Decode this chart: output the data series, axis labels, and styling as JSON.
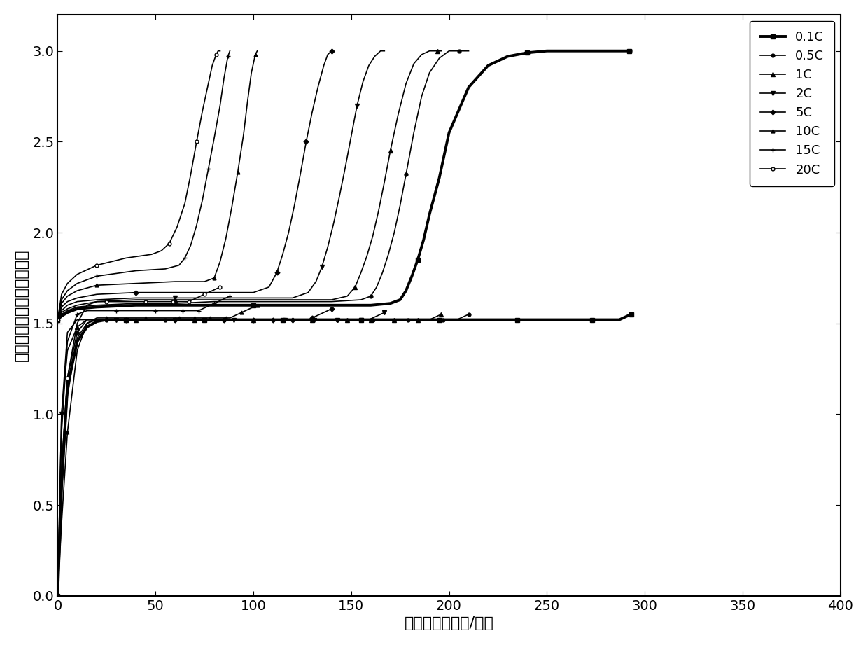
{
  "xlabel": "比容量（毫安时/克）",
  "ylabel": "电压（伏，相对于金属锂）",
  "xlim": [
    0,
    400
  ],
  "ylim": [
    0.0,
    3.2
  ],
  "xticks": [
    0,
    50,
    100,
    150,
    200,
    250,
    300,
    350,
    400
  ],
  "yticks": [
    0.0,
    0.5,
    1.0,
    1.5,
    2.0,
    2.5,
    3.0
  ],
  "legend_labels": [
    "0.1C",
    "0.5C",
    "1C",
    "2C",
    "5C",
    "10C",
    "15C",
    "20C"
  ],
  "curves": {
    "0.1C": {
      "charge_cap": [
        0,
        2,
        5,
        10,
        20,
        40,
        60,
        80,
        100,
        120,
        140,
        160,
        170,
        175,
        178,
        181,
        184,
        187,
        190,
        195,
        200,
        210,
        220,
        230,
        240,
        250,
        260,
        270,
        280,
        285,
        288,
        290,
        292,
        293
      ],
      "charge_v": [
        1.52,
        1.54,
        1.56,
        1.58,
        1.59,
        1.6,
        1.6,
        1.6,
        1.6,
        1.6,
        1.6,
        1.6,
        1.61,
        1.63,
        1.68,
        1.76,
        1.85,
        1.96,
        2.1,
        2.3,
        2.55,
        2.8,
        2.92,
        2.97,
        2.99,
        3.0,
        3.0,
        3.0,
        3.0,
        3.0,
        3.0,
        3.0,
        3.0,
        3.0
      ],
      "discharge_cap": [
        293,
        291,
        289,
        287,
        285,
        282,
        279,
        276,
        273,
        270,
        265,
        260,
        255,
        250,
        245,
        240,
        235,
        230,
        225,
        220,
        215,
        210,
        205,
        200,
        195,
        190,
        185,
        180,
        175,
        170,
        165,
        160,
        155,
        150,
        145,
        140,
        135,
        130,
        125,
        120,
        115,
        110,
        105,
        100,
        95,
        90,
        85,
        80,
        75,
        70,
        65,
        60,
        55,
        50,
        45,
        40,
        35,
        30,
        25,
        20,
        15,
        10,
        5,
        2,
        0
      ],
      "discharge_v": [
        1.55,
        1.54,
        1.53,
        1.52,
        1.52,
        1.52,
        1.52,
        1.52,
        1.52,
        1.52,
        1.52,
        1.52,
        1.52,
        1.52,
        1.52,
        1.52,
        1.52,
        1.52,
        1.52,
        1.52,
        1.52,
        1.52,
        1.52,
        1.52,
        1.52,
        1.52,
        1.52,
        1.52,
        1.52,
        1.52,
        1.52,
        1.52,
        1.52,
        1.52,
        1.52,
        1.52,
        1.52,
        1.52,
        1.52,
        1.52,
        1.52,
        1.52,
        1.52,
        1.52,
        1.52,
        1.52,
        1.52,
        1.52,
        1.52,
        1.52,
        1.52,
        1.52,
        1.52,
        1.52,
        1.52,
        1.52,
        1.52,
        1.52,
        1.52,
        1.51,
        1.48,
        1.4,
        1.15,
        0.6,
        0.0
      ]
    },
    "0.5C": {
      "charge_cap": [
        0,
        2,
        5,
        10,
        20,
        40,
        60,
        80,
        100,
        120,
        140,
        155,
        160,
        163,
        166,
        169,
        172,
        175,
        178,
        182,
        186,
        190,
        195,
        200,
        205,
        208,
        210
      ],
      "charge_v": [
        1.52,
        1.55,
        1.57,
        1.59,
        1.6,
        1.61,
        1.61,
        1.62,
        1.62,
        1.62,
        1.62,
        1.63,
        1.65,
        1.7,
        1.78,
        1.88,
        2.0,
        2.15,
        2.32,
        2.55,
        2.75,
        2.88,
        2.96,
        3.0,
        3.0,
        3.0,
        3.0
      ],
      "discharge_cap": [
        210,
        208,
        206,
        204,
        202,
        200,
        197,
        194,
        191,
        188,
        185,
        182,
        179,
        176,
        173,
        170,
        167,
        164,
        161,
        158,
        155,
        152,
        149,
        146,
        143,
        140,
        135,
        130,
        125,
        120,
        115,
        110,
        105,
        100,
        95,
        90,
        85,
        80,
        75,
        70,
        65,
        60,
        55,
        50,
        45,
        40,
        35,
        30,
        25,
        20,
        15,
        10,
        5,
        2,
        0
      ],
      "discharge_v": [
        1.55,
        1.54,
        1.53,
        1.52,
        1.52,
        1.52,
        1.52,
        1.52,
        1.52,
        1.52,
        1.52,
        1.52,
        1.52,
        1.52,
        1.52,
        1.52,
        1.52,
        1.52,
        1.52,
        1.52,
        1.52,
        1.52,
        1.52,
        1.52,
        1.52,
        1.52,
        1.52,
        1.52,
        1.52,
        1.52,
        1.52,
        1.52,
        1.52,
        1.52,
        1.52,
        1.52,
        1.52,
        1.52,
        1.52,
        1.52,
        1.52,
        1.52,
        1.52,
        1.52,
        1.52,
        1.52,
        1.52,
        1.52,
        1.52,
        1.52,
        1.5,
        1.42,
        1.1,
        0.55,
        0.0
      ]
    },
    "1C": {
      "charge_cap": [
        0,
        2,
        5,
        10,
        20,
        40,
        60,
        80,
        100,
        120,
        140,
        148,
        152,
        155,
        158,
        161,
        164,
        167,
        170,
        174,
        178,
        182,
        186,
        190,
        194,
        196
      ],
      "charge_v": [
        1.52,
        1.56,
        1.58,
        1.6,
        1.62,
        1.63,
        1.63,
        1.63,
        1.63,
        1.63,
        1.63,
        1.65,
        1.7,
        1.78,
        1.87,
        1.98,
        2.12,
        2.28,
        2.45,
        2.65,
        2.82,
        2.93,
        2.98,
        3.0,
        3.0,
        3.0
      ],
      "discharge_cap": [
        196,
        194,
        192,
        190,
        188,
        186,
        184,
        182,
        180,
        178,
        176,
        174,
        172,
        170,
        168,
        166,
        164,
        162,
        160,
        158,
        156,
        154,
        152,
        150,
        148,
        145,
        142,
        139,
        136,
        133,
        130,
        125,
        120,
        115,
        110,
        105,
        100,
        95,
        90,
        85,
        80,
        75,
        70,
        65,
        60,
        55,
        50,
        45,
        40,
        35,
        30,
        25,
        20,
        15,
        10,
        5,
        2,
        0
      ],
      "discharge_v": [
        1.55,
        1.54,
        1.53,
        1.52,
        1.52,
        1.52,
        1.52,
        1.52,
        1.52,
        1.52,
        1.52,
        1.52,
        1.52,
        1.52,
        1.52,
        1.52,
        1.52,
        1.52,
        1.52,
        1.52,
        1.52,
        1.52,
        1.52,
        1.52,
        1.52,
        1.52,
        1.52,
        1.52,
        1.52,
        1.52,
        1.52,
        1.52,
        1.52,
        1.52,
        1.52,
        1.52,
        1.52,
        1.52,
        1.52,
        1.52,
        1.52,
        1.52,
        1.52,
        1.52,
        1.52,
        1.52,
        1.52,
        1.52,
        1.52,
        1.52,
        1.52,
        1.52,
        1.52,
        1.52,
        1.48,
        1.35,
        1.0,
        0.0
      ]
    },
    "2C": {
      "charge_cap": [
        0,
        2,
        5,
        10,
        20,
        40,
        60,
        80,
        100,
        120,
        128,
        132,
        135,
        138,
        141,
        144,
        147,
        150,
        153,
        156,
        159,
        162,
        165,
        167
      ],
      "charge_v": [
        1.52,
        1.57,
        1.6,
        1.62,
        1.63,
        1.64,
        1.64,
        1.64,
        1.64,
        1.64,
        1.67,
        1.73,
        1.81,
        1.92,
        2.05,
        2.2,
        2.36,
        2.53,
        2.7,
        2.83,
        2.92,
        2.97,
        3.0,
        3.0
      ],
      "discharge_cap": [
        167,
        165,
        163,
        161,
        159,
        157,
        155,
        153,
        151,
        149,
        147,
        145,
        143,
        141,
        139,
        137,
        135,
        133,
        131,
        129,
        127,
        125,
        122,
        119,
        116,
        113,
        110,
        105,
        100,
        95,
        90,
        85,
        80,
        75,
        70,
        65,
        60,
        55,
        50,
        45,
        40,
        35,
        30,
        25,
        20,
        15,
        10,
        5,
        2,
        0
      ],
      "discharge_v": [
        1.56,
        1.55,
        1.54,
        1.53,
        1.52,
        1.52,
        1.52,
        1.52,
        1.52,
        1.52,
        1.52,
        1.52,
        1.52,
        1.52,
        1.52,
        1.52,
        1.52,
        1.52,
        1.52,
        1.52,
        1.52,
        1.52,
        1.52,
        1.52,
        1.52,
        1.52,
        1.52,
        1.52,
        1.52,
        1.52,
        1.52,
        1.52,
        1.52,
        1.52,
        1.52,
        1.52,
        1.52,
        1.52,
        1.52,
        1.52,
        1.52,
        1.52,
        1.52,
        1.52,
        1.52,
        1.52,
        1.52,
        1.45,
        1.0,
        0.0
      ]
    },
    "5C": {
      "charge_cap": [
        0,
        2,
        5,
        10,
        20,
        40,
        60,
        80,
        100,
        108,
        112,
        115,
        118,
        121,
        124,
        127,
        130,
        133,
        136,
        138,
        140
      ],
      "charge_v": [
        1.52,
        1.59,
        1.62,
        1.64,
        1.66,
        1.67,
        1.67,
        1.67,
        1.67,
        1.7,
        1.78,
        1.88,
        2.0,
        2.15,
        2.32,
        2.5,
        2.66,
        2.8,
        2.92,
        2.98,
        3.0
      ],
      "discharge_cap": [
        140,
        138,
        136,
        134,
        132,
        130,
        128,
        126,
        124,
        122,
        120,
        118,
        116,
        114,
        112,
        110,
        108,
        106,
        104,
        102,
        100,
        97,
        94,
        91,
        88,
        85,
        80,
        75,
        70,
        65,
        60,
        55,
        50,
        45,
        40,
        35,
        30,
        25,
        20,
        15,
        10,
        5,
        2,
        0
      ],
      "discharge_v": [
        1.58,
        1.57,
        1.56,
        1.55,
        1.54,
        1.53,
        1.52,
        1.52,
        1.52,
        1.52,
        1.52,
        1.52,
        1.52,
        1.52,
        1.52,
        1.52,
        1.52,
        1.52,
        1.52,
        1.52,
        1.52,
        1.52,
        1.52,
        1.52,
        1.52,
        1.52,
        1.52,
        1.52,
        1.52,
        1.52,
        1.52,
        1.52,
        1.52,
        1.52,
        1.52,
        1.52,
        1.52,
        1.52,
        1.52,
        1.52,
        1.45,
        1.2,
        0.7,
        0.0
      ]
    },
    "10C": {
      "charge_cap": [
        0,
        2,
        5,
        10,
        20,
        40,
        60,
        75,
        80,
        83,
        86,
        89,
        92,
        95,
        97,
        99,
        101,
        102
      ],
      "charge_v": [
        1.52,
        1.61,
        1.65,
        1.68,
        1.71,
        1.72,
        1.73,
        1.73,
        1.75,
        1.84,
        1.97,
        2.14,
        2.33,
        2.54,
        2.72,
        2.88,
        2.98,
        3.0
      ],
      "discharge_cap": [
        102,
        100,
        98,
        96,
        94,
        92,
        90,
        88,
        86,
        84,
        82,
        80,
        78,
        76,
        74,
        72,
        70,
        68,
        66,
        64,
        62,
        60,
        55,
        50,
        45,
        40,
        35,
        30,
        25,
        20,
        15,
        10,
        5,
        2,
        0
      ],
      "discharge_v": [
        1.6,
        1.59,
        1.58,
        1.57,
        1.56,
        1.55,
        1.54,
        1.53,
        1.53,
        1.53,
        1.53,
        1.53,
        1.53,
        1.53,
        1.53,
        1.53,
        1.53,
        1.53,
        1.53,
        1.53,
        1.53,
        1.53,
        1.53,
        1.53,
        1.53,
        1.53,
        1.53,
        1.53,
        1.53,
        1.53,
        1.5,
        1.35,
        0.9,
        0.4,
        0.0
      ]
    },
    "15C": {
      "charge_cap": [
        0,
        2,
        5,
        10,
        20,
        40,
        55,
        62,
        65,
        68,
        71,
        74,
        77,
        80,
        83,
        85,
        87,
        88
      ],
      "charge_v": [
        1.52,
        1.63,
        1.68,
        1.72,
        1.76,
        1.79,
        1.8,
        1.82,
        1.86,
        1.93,
        2.04,
        2.18,
        2.35,
        2.52,
        2.7,
        2.85,
        2.97,
        3.0
      ],
      "discharge_cap": [
        88,
        86,
        84,
        82,
        80,
        78,
        76,
        74,
        72,
        70,
        68,
        66,
        64,
        62,
        60,
        55,
        50,
        45,
        40,
        35,
        30,
        25,
        20,
        15,
        10,
        5,
        2,
        0
      ],
      "discharge_v": [
        1.65,
        1.64,
        1.63,
        1.62,
        1.61,
        1.6,
        1.59,
        1.58,
        1.57,
        1.57,
        1.57,
        1.57,
        1.57,
        1.57,
        1.57,
        1.57,
        1.57,
        1.57,
        1.57,
        1.57,
        1.57,
        1.57,
        1.57,
        1.57,
        1.55,
        1.4,
        0.9,
        0.0
      ]
    },
    "20C": {
      "charge_cap": [
        0,
        2,
        5,
        10,
        20,
        35,
        48,
        53,
        57,
        61,
        65,
        68,
        71,
        74,
        77,
        79,
        81,
        82,
        83
      ],
      "charge_v": [
        1.52,
        1.66,
        1.72,
        1.77,
        1.82,
        1.86,
        1.88,
        1.9,
        1.94,
        2.03,
        2.16,
        2.32,
        2.5,
        2.67,
        2.82,
        2.92,
        2.98,
        3.0,
        3.0
      ],
      "discharge_cap": [
        83,
        81,
        79,
        77,
        75,
        73,
        71,
        69,
        67,
        65,
        63,
        61,
        59,
        57,
        55,
        50,
        45,
        40,
        35,
        30,
        25,
        20,
        15,
        10,
        5,
        2,
        0
      ],
      "discharge_v": [
        1.7,
        1.69,
        1.68,
        1.67,
        1.66,
        1.65,
        1.64,
        1.63,
        1.62,
        1.62,
        1.62,
        1.62,
        1.62,
        1.62,
        1.62,
        1.62,
        1.62,
        1.62,
        1.62,
        1.62,
        1.62,
        1.62,
        1.6,
        1.5,
        1.2,
        0.7,
        0.0
      ]
    }
  },
  "line_styles": {
    "0.1C": {
      "color": "#000000",
      "linewidth": 2.8,
      "marker": "s",
      "markersize": 4,
      "markevery": 8,
      "markerfacecolor": "#000000"
    },
    "0.5C": {
      "color": "#000000",
      "linewidth": 1.2,
      "marker": "o",
      "markersize": 3.5,
      "markevery": 6,
      "markerfacecolor": "#000000"
    },
    "1C": {
      "color": "#000000",
      "linewidth": 1.2,
      "marker": "^",
      "markersize": 4,
      "markevery": 6,
      "markerfacecolor": "#000000"
    },
    "2C": {
      "color": "#000000",
      "linewidth": 1.2,
      "marker": "v",
      "markersize": 4,
      "markevery": 6,
      "markerfacecolor": "#000000"
    },
    "5C": {
      "color": "#000000",
      "linewidth": 1.2,
      "marker": "D",
      "markersize": 3.5,
      "markevery": 5,
      "markerfacecolor": "#000000"
    },
    "10C": {
      "color": "#000000",
      "linewidth": 1.2,
      "marker": "^",
      "markersize": 3.5,
      "markevery": 4,
      "markerfacecolor": "#000000"
    },
    "15C": {
      "color": "#000000",
      "linewidth": 1.2,
      "marker": "+",
      "markersize": 5,
      "markevery": 4,
      "markerfacecolor": "#000000"
    },
    "20C": {
      "color": "#000000",
      "linewidth": 1.2,
      "marker": "o",
      "markersize": 3.5,
      "markevery": 4,
      "markerfacecolor": "white"
    }
  },
  "background_color": "#ffffff",
  "font_size": 14,
  "legend_fontsize": 13,
  "axis_label_fontsize": 16
}
